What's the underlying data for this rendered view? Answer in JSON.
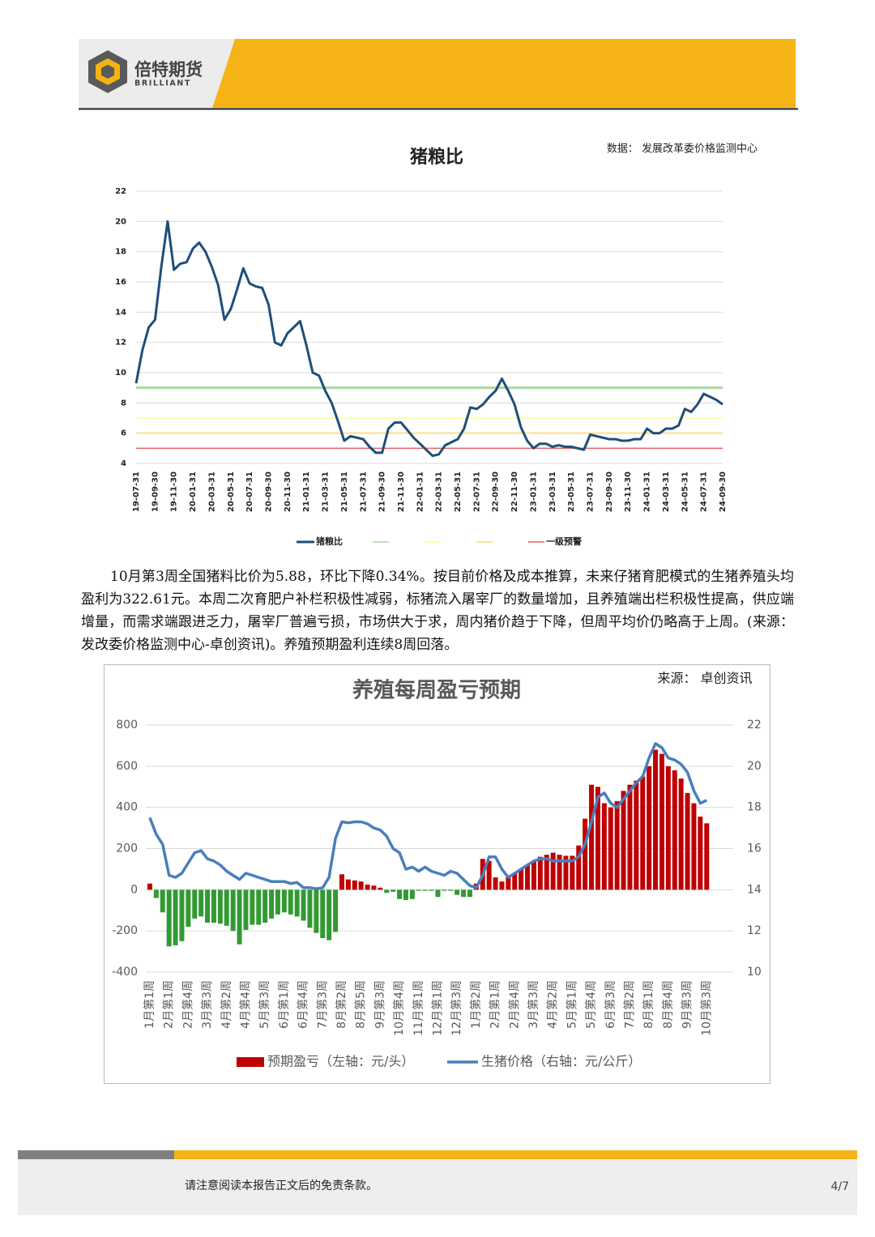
{
  "header": {
    "brand": "倍特期货",
    "brand_en": "BRILLIANT"
  },
  "paragraph": "10月第3周全国猪料比价为5.88，环比下降0.34%。按目前价格及成本推算，未来仔猪育肥模式的生猪养殖头均盈利为322.61元。本周二次育肥户补栏积极性减弱，标猪流入屠宰厂的数量增加，且养殖端出栏积极性提高，供应端增量，而需求端跟进乏力，屠宰厂普遍亏损，市场供大于求，周内猪价趋于下降，但周平均价仍略高于上周。(来源：发改委价格监测中心-卓创资讯)。养殖预期盈利连续8周回落。",
  "footer": {
    "disclaimer": "请注意阅读本报告正文后的免责条款。",
    "page": "4/7"
  },
  "chart_data": [
    {
      "type": "line",
      "title": "猪粮比",
      "source": "数据： 发展改革委价格监测中心",
      "categories": [
        "19-07-31",
        null,
        null,
        "19-09-30",
        null,
        null,
        "19-11-30",
        null,
        null,
        "20-01-31",
        null,
        null,
        "20-03-31",
        null,
        null,
        "20-05-31",
        null,
        null,
        "20-07-31",
        null,
        null,
        "20-09-30",
        null,
        null,
        "20-11-30",
        null,
        null,
        "21-01-31",
        null,
        null,
        "21-03-31",
        null,
        null,
        "21-05-31",
        null,
        null,
        "21-07-31",
        null,
        null,
        "21-09-30",
        null,
        null,
        "21-11-30",
        null,
        null,
        "22-01-31",
        null,
        null,
        "22-03-31",
        null,
        null,
        "22-05-31",
        null,
        null,
        "22-07-31",
        null,
        null,
        "22-09-30",
        null,
        null,
        "22-11-30",
        null,
        null,
        "23-01-31",
        null,
        null,
        "23-03-31",
        null,
        null,
        "23-05-31",
        null,
        null,
        "23-07-31",
        null,
        null,
        "23-09-30",
        null,
        null,
        "23-11-30",
        null,
        null,
        "24-01-31",
        null,
        null,
        "24-03-31",
        null,
        null,
        "24-05-31",
        null,
        null,
        "24-07-31",
        null,
        null,
        "24-09-30"
      ],
      "series": [
        {
          "name": "猪粮比",
          "color": "#1f4e79",
          "values": [
            9.3,
            11.5,
            13.0,
            13.5,
            17.0,
            20.0,
            16.8,
            17.2,
            17.3,
            18.2,
            18.6,
            18.0,
            17.0,
            15.8,
            13.5,
            14.2,
            15.5,
            16.9,
            15.9,
            15.7,
            15.6,
            14.5,
            12.0,
            11.8,
            12.6,
            13.0,
            13.4,
            11.8,
            10.0,
            9.8,
            8.8,
            8.0,
            6.8,
            5.5,
            5.8,
            5.7,
            5.6,
            5.1,
            4.7,
            4.7,
            6.3,
            6.7,
            6.7,
            6.2,
            5.7,
            5.3,
            4.9,
            4.5,
            4.6,
            5.2,
            5.4,
            5.6,
            6.3,
            7.7,
            7.6,
            7.9,
            8.4,
            8.8,
            9.6,
            8.8,
            7.9,
            6.4,
            5.5,
            5.0,
            5.3,
            5.3,
            5.1,
            5.2,
            5.1,
            5.1,
            5.0,
            4.9,
            5.9,
            5.8,
            5.7,
            5.6,
            5.6,
            5.5,
            5.5,
            5.6,
            5.6,
            6.3,
            6.0,
            6.0,
            6.3,
            6.3,
            6.5,
            7.6,
            7.4,
            7.9,
            8.6,
            8.4,
            8.2,
            7.9
          ]
        }
      ],
      "reference_lines": [
        {
          "value": 9,
          "color": "#a9d8a0"
        },
        {
          "value": 7,
          "color": "#ffff88"
        },
        {
          "value": 6,
          "color": "#ffd966"
        },
        {
          "value": 5,
          "color": "#e06666",
          "name": "一级预警"
        }
      ],
      "ylim": [
        4,
        22
      ],
      "yticks": [
        4,
        6,
        8,
        10,
        12,
        14,
        16,
        18,
        20,
        22
      ],
      "grid": true
    },
    {
      "type": "combo",
      "title": "养殖每周盈亏预期",
      "source": "来源：  卓创资讯",
      "categories": [
        "1月第1周",
        null,
        null,
        "2月第1周",
        null,
        null,
        "2月第4周",
        null,
        null,
        "3月第3周",
        null,
        null,
        "4月第2周",
        null,
        null,
        "4月第4周",
        null,
        null,
        "5月第3周",
        null,
        null,
        "6月第1周",
        null,
        null,
        "6月第4周",
        null,
        null,
        "7月第3周",
        null,
        null,
        "8月第2周",
        null,
        null,
        "8月第5周",
        null,
        null,
        "9月第3周",
        null,
        null,
        "10月第4周",
        null,
        null,
        "11月第1周",
        null,
        null,
        "12月第1周",
        null,
        null,
        "12月第3周",
        null,
        null,
        "1月第2周",
        null,
        null,
        "2月第1周",
        null,
        null,
        "2月第4周",
        null,
        null,
        "3月第3周",
        null,
        null,
        "4月第2周",
        null,
        null,
        "5月第1周",
        null,
        null,
        "5月第4周",
        null,
        null,
        "6月第3周",
        null,
        null,
        "7月第2周",
        null,
        null,
        "8月第1周",
        null,
        null,
        "8月第4周",
        null,
        null,
        "9月第3周",
        null,
        null,
        "10月第3周"
      ],
      "series": [
        {
          "name": "预期盈亏（左轴：元/头）",
          "type": "bar",
          "color": "#c00000",
          "negative_color": "#339933",
          "values": [
            30,
            -40,
            -110,
            -275,
            -270,
            -250,
            -180,
            -140,
            -130,
            -160,
            -160,
            -165,
            -175,
            -200,
            -265,
            -195,
            -170,
            -170,
            -160,
            -140,
            -120,
            -110,
            -120,
            -130,
            -150,
            -185,
            -210,
            -235,
            -245,
            -205,
            75,
            50,
            45,
            40,
            25,
            20,
            10,
            -15,
            -10,
            -45,
            -50,
            -45,
            -5,
            -5,
            -5,
            -35,
            -5,
            -5,
            -25,
            -35,
            -35,
            30,
            150,
            140,
            60,
            40,
            60,
            80,
            100,
            120,
            140,
            160,
            170,
            180,
            170,
            165,
            165,
            215,
            345,
            510,
            500,
            420,
            400,
            430,
            480,
            510,
            530,
            550,
            600,
            680,
            660,
            600,
            580,
            540,
            470,
            420,
            355,
            322.61
          ]
        },
        {
          "name": "生猪价格（右轴：元/公斤）",
          "type": "line",
          "axis": "y2",
          "color": "#4a7ebb",
          "values": [
            17.5,
            16.7,
            16.2,
            14.7,
            14.6,
            14.8,
            15.3,
            15.8,
            15.9,
            15.5,
            15.4,
            15.2,
            14.9,
            14.7,
            14.5,
            14.8,
            14.7,
            14.6,
            14.5,
            14.4,
            14.4,
            14.4,
            14.3,
            14.35,
            14.1,
            14.1,
            14.05,
            14.1,
            14.6,
            16.5,
            17.3,
            17.25,
            17.3,
            17.3,
            17.2,
            17.0,
            16.9,
            16.6,
            16.0,
            15.8,
            15.0,
            15.1,
            14.9,
            15.1,
            14.9,
            14.8,
            14.7,
            14.9,
            14.8,
            14.5,
            14.2,
            14.1,
            14.7,
            15.6,
            15.6,
            15.0,
            14.6,
            14.8,
            15.0,
            15.2,
            15.4,
            15.5,
            15.5,
            15.4,
            15.4,
            15.4,
            15.4,
            15.6,
            16.2,
            17.3,
            18.5,
            18.7,
            18.2,
            18.0,
            18.4,
            18.8,
            19.2,
            19.5,
            20.4,
            21.1,
            20.9,
            20.4,
            20.3,
            20.1,
            19.7,
            18.8,
            18.2,
            18.35
          ]
        }
      ],
      "ylim": [
        -400,
        800
      ],
      "yticks": [
        -400,
        -200,
        0,
        200,
        400,
        600,
        800
      ],
      "y2lim": [
        10,
        22
      ],
      "y2ticks": [
        10,
        12,
        14,
        16,
        18,
        20,
        22
      ],
      "grid": true
    }
  ]
}
